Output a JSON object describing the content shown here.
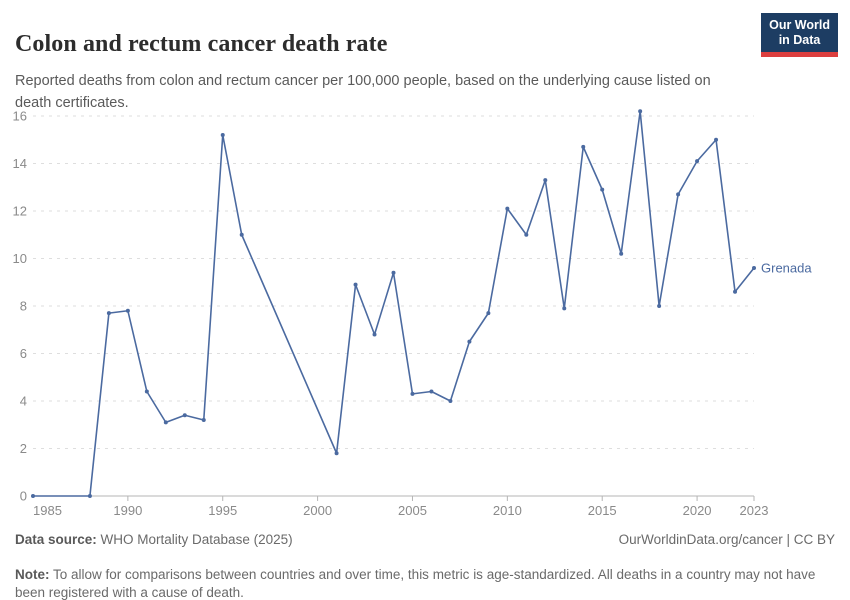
{
  "header": {
    "title": "Colon and rectum cancer death rate",
    "subtitle": "Reported deaths from colon and rectum cancer per 100,000 people, based on the underlying cause listed on death certificates.",
    "logo": {
      "line1": "Our World",
      "line2": "in Data"
    }
  },
  "chart_data": {
    "type": "line",
    "title": "Colon and rectum cancer death rate",
    "xlabel": "",
    "ylabel": "",
    "xlim": [
      1985,
      2023
    ],
    "ylim": [
      0,
      16
    ],
    "xticks": [
      1985,
      1990,
      1995,
      2000,
      2005,
      2010,
      2015,
      2020,
      2023
    ],
    "yticks": [
      0,
      2,
      4,
      6,
      8,
      10,
      12,
      14,
      16
    ],
    "grid": "dashed-horizontal",
    "legend_position": "end-of-line-label",
    "series": [
      {
        "name": "Grenada",
        "color": "#4b6aa0",
        "points": [
          [
            1985,
            0
          ],
          [
            1988,
            0
          ],
          [
            1989,
            7.7
          ],
          [
            1990,
            7.8
          ],
          [
            1991,
            4.4
          ],
          [
            1992,
            3.1
          ],
          [
            1993,
            3.4
          ],
          [
            1994,
            3.2
          ],
          [
            1995,
            15.2
          ],
          [
            1996,
            11.0
          ],
          [
            2001,
            1.8
          ],
          [
            2002,
            8.9
          ],
          [
            2003,
            6.8
          ],
          [
            2004,
            9.4
          ],
          [
            2005,
            4.3
          ],
          [
            2006,
            4.4
          ],
          [
            2007,
            4.0
          ],
          [
            2008,
            6.5
          ],
          [
            2009,
            7.7
          ],
          [
            2010,
            12.1
          ],
          [
            2011,
            11.0
          ],
          [
            2012,
            13.3
          ],
          [
            2013,
            7.9
          ],
          [
            2014,
            14.7
          ],
          [
            2015,
            12.9
          ],
          [
            2016,
            10.2
          ],
          [
            2017,
            16.2
          ],
          [
            2018,
            8.0
          ],
          [
            2019,
            12.7
          ],
          [
            2020,
            14.1
          ],
          [
            2021,
            15.0
          ],
          [
            2022,
            8.6
          ],
          [
            2023,
            9.6
          ]
        ]
      }
    ]
  },
  "footer": {
    "datasource_label": "Data source:",
    "datasource_value": " WHO Mortality Database (2025)",
    "link": "OurWorldinData.org/cancer | CC BY",
    "note_label": "Note:",
    "note_text": " To allow for comparisons between countries and over time, this metric is age-standardized. All deaths in a country may not have been registered with a cause of death."
  },
  "colors": {
    "line": "#4b6aa0",
    "axis_text": "#8a8a8a",
    "grid": "#dedede",
    "axis": "#b5b5b5",
    "logo_bg": "#1d3d63",
    "logo_red": "#dc3e3e"
  }
}
